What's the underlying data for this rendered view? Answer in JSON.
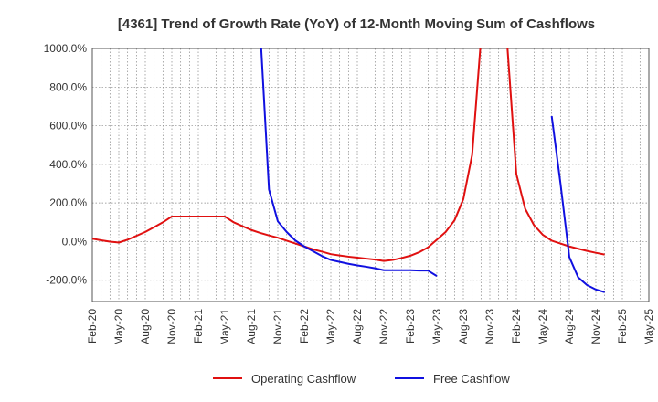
{
  "chart_data": {
    "type": "line",
    "title": "[4361]  Trend of Growth Rate (YoY) of 12-Month Moving Sum of Cashflows",
    "xlabel": "",
    "ylabel": "",
    "ylim": [
      -310,
      1000
    ],
    "ytick_values": [
      -200,
      0,
      200,
      400,
      600,
      800,
      1000
    ],
    "ytick_labels": [
      "-200.0%",
      "0.0%",
      "200.0%",
      "400.0%",
      "600.0%",
      "800.0%",
      "1000.0%"
    ],
    "x_start": "2020-02",
    "x_end": "2025-05",
    "x_tick_labels": [
      "Feb-20",
      "May-20",
      "Aug-20",
      "Nov-20",
      "Feb-21",
      "May-21",
      "Aug-21",
      "Nov-21",
      "Feb-22",
      "May-22",
      "Aug-22",
      "Nov-22",
      "Feb-23",
      "May-23",
      "Aug-23",
      "Nov-23",
      "Feb-24",
      "May-24",
      "Aug-24",
      "Nov-24",
      "Feb-25",
      "May-25"
    ],
    "grid": true,
    "legend_position": "bottom",
    "series": [
      {
        "name": "Operating Cashflow",
        "color": "#e01010",
        "points": [
          [
            "2020-02",
            15
          ],
          [
            "2020-03",
            7
          ],
          [
            "2020-04",
            0
          ],
          [
            "2020-05",
            -5
          ],
          [
            "2020-06",
            10
          ],
          [
            "2020-07",
            30
          ],
          [
            "2020-08",
            50
          ],
          [
            "2020-09",
            75
          ],
          [
            "2020-10",
            100
          ],
          [
            "2020-11",
            130
          ],
          [
            "2020-12",
            130
          ],
          [
            "2021-01",
            130
          ],
          [
            "2021-02",
            130
          ],
          [
            "2021-03",
            130
          ],
          [
            "2021-04",
            130
          ],
          [
            "2021-05",
            130
          ],
          [
            "2021-06",
            100
          ],
          [
            "2021-07",
            80
          ],
          [
            "2021-08",
            60
          ],
          [
            "2021-09",
            45
          ],
          [
            "2021-10",
            32
          ],
          [
            "2021-11",
            20
          ],
          [
            "2021-12",
            5
          ],
          [
            "2022-01",
            -10
          ],
          [
            "2022-02",
            -25
          ],
          [
            "2022-03",
            -40
          ],
          [
            "2022-04",
            -52
          ],
          [
            "2022-05",
            -65
          ],
          [
            "2022-06",
            -72
          ],
          [
            "2022-07",
            -78
          ],
          [
            "2022-08",
            -83
          ],
          [
            "2022-09",
            -88
          ],
          [
            "2022-10",
            -93
          ],
          [
            "2022-11",
            -100
          ],
          [
            "2022-12",
            -95
          ],
          [
            "2023-01",
            -85
          ],
          [
            "2023-02",
            -73
          ],
          [
            "2023-03",
            -55
          ],
          [
            "2023-04",
            -30
          ],
          [
            "2023-05",
            10
          ],
          [
            "2023-06",
            50
          ],
          [
            "2023-07",
            110
          ],
          [
            "2023-08",
            220
          ],
          [
            "2023-09",
            450
          ],
          [
            "2023-10",
            1050
          ],
          [
            "2023-11",
            1400
          ],
          [
            "2023-12",
            1400
          ],
          [
            "2024-01",
            1000
          ],
          [
            "2024-02",
            350
          ],
          [
            "2024-03",
            170
          ],
          [
            "2024-04",
            85
          ],
          [
            "2024-05",
            35
          ],
          [
            "2024-06",
            5
          ],
          [
            "2024-07",
            -10
          ],
          [
            "2024-08",
            -25
          ],
          [
            "2024-09",
            -37
          ],
          [
            "2024-10",
            -48
          ],
          [
            "2024-11",
            -58
          ],
          [
            "2024-12",
            -67
          ]
        ]
      },
      {
        "name": "Free Cashflow",
        "color": "#1010e0",
        "points": [
          [
            "2021-09",
            1100
          ],
          [
            "2021-10",
            270
          ],
          [
            "2021-11",
            105
          ],
          [
            "2021-12",
            50
          ],
          [
            "2022-01",
            5
          ],
          [
            "2022-02",
            -25
          ],
          [
            "2022-03",
            -50
          ],
          [
            "2022-04",
            -75
          ],
          [
            "2022-05",
            -95
          ],
          [
            "2022-06",
            -105
          ],
          [
            "2022-07",
            -115
          ],
          [
            "2022-08",
            -123
          ],
          [
            "2022-09",
            -130
          ],
          [
            "2022-10",
            -138
          ],
          [
            "2022-11",
            -148
          ],
          [
            "2022-12",
            -148
          ],
          [
            "2023-01",
            -148
          ],
          [
            "2023-02",
            -148
          ],
          [
            "2023-03",
            -150
          ],
          [
            "2023-04",
            -150
          ],
          [
            "2023-05",
            -178
          ]
        ]
      },
      {
        "name": "Free Cashflow",
        "color": "#1010e0",
        "points": [
          [
            "2024-06",
            650
          ],
          [
            "2024-07",
            300
          ],
          [
            "2024-08",
            -80
          ],
          [
            "2024-09",
            -185
          ],
          [
            "2024-10",
            -225
          ],
          [
            "2024-11",
            -248
          ],
          [
            "2024-12",
            -262
          ]
        ]
      }
    ],
    "legend": [
      {
        "label": "Operating Cashflow",
        "color": "#e01010"
      },
      {
        "label": "Free Cashflow",
        "color": "#1010e0"
      }
    ]
  }
}
